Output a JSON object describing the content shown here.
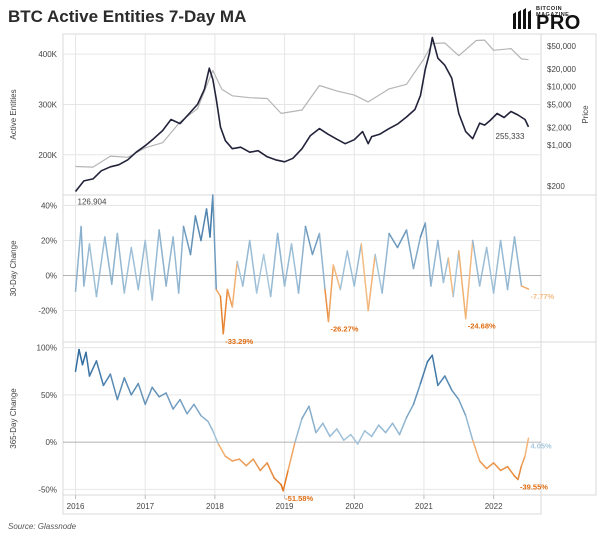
{
  "title": "BTC Active Entities 7-Day MA",
  "logo": {
    "small_text": "BITCOIN MAGAZINE",
    "big_text": "PRO"
  },
  "source": "Source: Glassnode",
  "colors": {
    "entities": "#22233a",
    "price": "#b5b5b5",
    "blue_dark": "#2f6a9e",
    "blue_light": "#a9c8dd",
    "orange_light": "#f5be87",
    "orange_dark": "#e06d12",
    "grid": "#e6e6e6",
    "border": "#d9d9d9",
    "zero_line": "#9a9a9a"
  },
  "chart_data": [
    {
      "type": "line",
      "series": [
        {
          "name": "Active Entities",
          "axis": "left",
          "x": [
            2016.0,
            2016.12,
            2016.25,
            2016.37,
            2016.5,
            2016.62,
            2016.75,
            2016.87,
            2017.0,
            2017.12,
            2017.25,
            2017.37,
            2017.5,
            2017.62,
            2017.75,
            2017.85,
            2017.92,
            2017.97,
            2018.02,
            2018.08,
            2018.15,
            2018.25,
            2018.37,
            2018.5,
            2018.62,
            2018.75,
            2018.87,
            2019.0,
            2019.12,
            2019.25,
            2019.37,
            2019.5,
            2019.62,
            2019.75,
            2019.87,
            2020.0,
            2020.12,
            2020.2,
            2020.25,
            2020.37,
            2020.5,
            2020.62,
            2020.75,
            2020.87,
            2020.95,
            2021.02,
            2021.08,
            2021.12,
            2021.2,
            2021.3,
            2021.4,
            2021.5,
            2021.6,
            2021.7,
            2021.8,
            2021.87,
            2021.95,
            2022.05,
            2022.15,
            2022.25,
            2022.35,
            2022.45,
            2022.5
          ],
          "y": [
            127000,
            148000,
            152000,
            168000,
            176000,
            180000,
            190000,
            205000,
            218000,
            232000,
            248000,
            270000,
            262000,
            280000,
            300000,
            330000,
            372000,
            350000,
            310000,
            255000,
            228000,
            212000,
            215000,
            205000,
            208000,
            196000,
            190000,
            186000,
            193000,
            212000,
            238000,
            252000,
            241000,
            231000,
            222000,
            230000,
            246000,
            222000,
            236000,
            241000,
            252000,
            261000,
            275000,
            290000,
            318000,
            370000,
            402000,
            433000,
            392000,
            378000,
            352000,
            282000,
            246000,
            232000,
            263000,
            259000,
            268000,
            282000,
            274000,
            286000,
            279000,
            270000,
            255333
          ]
        },
        {
          "name": "Price",
          "axis": "right",
          "x": [
            2016.0,
            2016.25,
            2016.5,
            2016.75,
            2017.0,
            2017.25,
            2017.5,
            2017.75,
            2017.92,
            2017.97,
            2018.1,
            2018.25,
            2018.5,
            2018.75,
            2018.95,
            2019.25,
            2019.5,
            2019.75,
            2020.0,
            2020.2,
            2020.5,
            2020.75,
            2021.0,
            2021.12,
            2021.3,
            2021.5,
            2021.75,
            2021.87,
            2022.0,
            2022.25,
            2022.4,
            2022.5
          ],
          "y": [
            430,
            420,
            650,
            620,
            900,
            1100,
            2500,
            4200,
            13500,
            19000,
            9000,
            7000,
            6500,
            6300,
            3500,
            4000,
            10500,
            8500,
            7200,
            5500,
            9200,
            11000,
            30000,
            55000,
            56000,
            34000,
            62000,
            63000,
            42000,
            45000,
            30000,
            29000
          ]
        }
      ],
      "ylim_left": [
        120000,
        440000
      ],
      "yticks_left": [
        "200K",
        "300K",
        "400K"
      ],
      "yticks_left_values": [
        200000,
        300000,
        400000
      ],
      "ylabel_left": "Active Entities",
      "y_right_scale": "log",
      "ylim_right": [
        140,
        80000
      ],
      "yticks_right": [
        "$200",
        "$1,000",
        "$2,000",
        "$5,000",
        "$10,000",
        "$20,000",
        "$50,000"
      ],
      "yticks_right_values": [
        200,
        1000,
        2000,
        5000,
        10000,
        20000,
        50000
      ],
      "ylabel_right": "Price",
      "annotations": [
        {
          "text": "126,904",
          "x": 2016.0,
          "y": 126904
        },
        {
          "text": "255,333",
          "x": 2022.5,
          "y": 255333
        }
      ]
    },
    {
      "type": "line",
      "name": "30-Day Change",
      "ylabel": "30-Day Change",
      "ylim": [
        -38,
        46
      ],
      "yticks": [
        "-20%",
        "0%",
        "20%",
        "40%"
      ],
      "yticks_values": [
        -20,
        0,
        20,
        40
      ],
      "x": [
        2016.0,
        2016.08,
        2016.12,
        2016.2,
        2016.3,
        2016.42,
        2016.52,
        2016.6,
        2016.7,
        2016.8,
        2016.9,
        2017.0,
        2017.1,
        2017.2,
        2017.3,
        2017.4,
        2017.48,
        2017.55,
        2017.65,
        2017.72,
        2017.8,
        2017.88,
        2017.93,
        2017.97,
        2018.02,
        2018.08,
        2018.12,
        2018.18,
        2018.25,
        2018.32,
        2018.4,
        2018.5,
        2018.6,
        2018.7,
        2018.8,
        2018.9,
        2019.0,
        2019.1,
        2019.2,
        2019.3,
        2019.4,
        2019.5,
        2019.58,
        2019.63,
        2019.7,
        2019.8,
        2019.9,
        2020.0,
        2020.1,
        2020.2,
        2020.3,
        2020.4,
        2020.5,
        2020.62,
        2020.75,
        2020.85,
        2020.95,
        2021.02,
        2021.1,
        2021.2,
        2021.28,
        2021.35,
        2021.42,
        2021.5,
        2021.6,
        2021.7,
        2021.8,
        2021.9,
        2022.0,
        2022.1,
        2022.2,
        2022.3,
        2022.4,
        2022.5
      ],
      "y": [
        -9,
        28,
        -6,
        18,
        -12,
        22,
        -5,
        24,
        -10,
        16,
        -8,
        20,
        -14,
        26,
        -6,
        22,
        -10,
        28,
        12,
        34,
        20,
        38,
        22,
        46,
        -8,
        -12,
        -33.29,
        -8,
        -18,
        8,
        -6,
        20,
        -10,
        12,
        -12,
        24,
        -6,
        18,
        -10,
        28,
        12,
        24,
        -8,
        -26.27,
        6,
        -8,
        14,
        -6,
        18,
        -20,
        12,
        -10,
        24,
        16,
        26,
        4,
        22,
        30,
        -6,
        20,
        -4,
        10,
        -12,
        14,
        -24.68,
        20,
        -6,
        16,
        -10,
        20,
        -8,
        22,
        -6,
        -7.77
      ],
      "annotations": [
        {
          "text": "-33.29%",
          "x": 2018.12,
          "y": -33.29
        },
        {
          "text": "-26.27%",
          "x": 2019.63,
          "y": -26.27
        },
        {
          "text": "-24.68%",
          "x": 2021.6,
          "y": -24.68
        },
        {
          "text": "-7.77%",
          "x": 2022.5,
          "y": -7.77
        }
      ]
    },
    {
      "type": "line",
      "name": "365-Day Change",
      "ylabel": "365-Day Change",
      "ylim": [
        -56,
        106
      ],
      "yticks": [
        "-50%",
        "0%",
        "50%",
        "100%"
      ],
      "yticks_values": [
        -50,
        0,
        50,
        100
      ],
      "x": [
        2016.0,
        2016.05,
        2016.1,
        2016.15,
        2016.2,
        2016.3,
        2016.4,
        2016.5,
        2016.6,
        2016.7,
        2016.8,
        2016.9,
        2017.0,
        2017.1,
        2017.2,
        2017.3,
        2017.4,
        2017.5,
        2017.6,
        2017.7,
        2017.8,
        2017.9,
        2017.97,
        2018.05,
        2018.15,
        2018.25,
        2018.35,
        2018.45,
        2018.55,
        2018.65,
        2018.75,
        2018.85,
        2018.95,
        2018.98,
        2019.05,
        2019.15,
        2019.25,
        2019.35,
        2019.45,
        2019.55,
        2019.65,
        2019.75,
        2019.85,
        2019.95,
        2020.05,
        2020.15,
        2020.25,
        2020.35,
        2020.45,
        2020.55,
        2020.65,
        2020.75,
        2020.85,
        2020.95,
        2021.05,
        2021.12,
        2021.2,
        2021.3,
        2021.4,
        2021.5,
        2021.6,
        2021.7,
        2021.8,
        2021.9,
        2022.0,
        2022.1,
        2022.2,
        2022.3,
        2022.35,
        2022.4,
        2022.45,
        2022.5
      ],
      "y": [
        75,
        98,
        82,
        95,
        70,
        86,
        60,
        72,
        45,
        68,
        50,
        62,
        40,
        58,
        48,
        52,
        35,
        45,
        30,
        40,
        28,
        22,
        12,
        -2,
        -15,
        -20,
        -18,
        -25,
        -18,
        -30,
        -22,
        -38,
        -45,
        -51.58,
        -30,
        0,
        25,
        38,
        10,
        20,
        6,
        14,
        2,
        8,
        -2,
        12,
        6,
        18,
        10,
        20,
        8,
        26,
        40,
        62,
        85,
        92,
        60,
        70,
        55,
        45,
        28,
        2,
        -20,
        -28,
        -22,
        -30,
        -26,
        -36,
        -39.55,
        -25,
        -15,
        4.05
      ],
      "annotations": [
        {
          "text": "-51.58%",
          "x": 2018.98,
          "y": -51.58
        },
        {
          "text": "-39.55%",
          "x": 2022.35,
          "y": -39.55
        },
        {
          "text": "4.05%",
          "x": 2022.5,
          "y": 4.05
        }
      ],
      "xticks": [
        "2016",
        "2017",
        "2018",
        "2019",
        "2020",
        "2021",
        "2022"
      ],
      "xticks_values": [
        2016,
        2017,
        2018,
        2019,
        2020,
        2021,
        2022
      ]
    }
  ]
}
